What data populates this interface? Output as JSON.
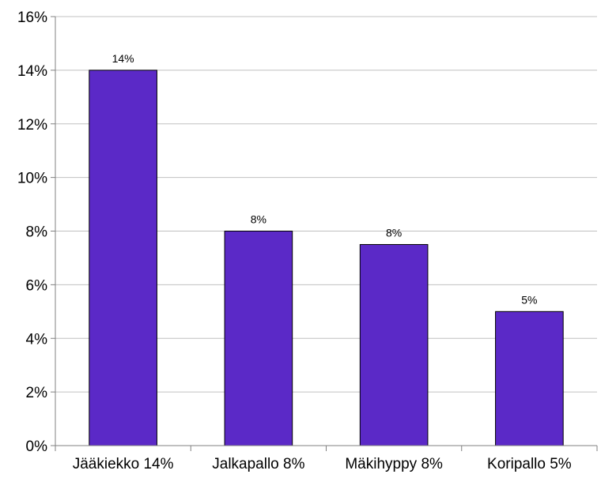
{
  "chart_data": {
    "type": "bar",
    "categories": [
      "Jääkiekko 14%",
      "Jalkapallo 8%",
      "Mäkihyppy 8%",
      "Koripallo 5%"
    ],
    "values": [
      14,
      8,
      7.5,
      5
    ],
    "data_labels": [
      "14%",
      "8%",
      "8%",
      "5%"
    ],
    "y_ticks": [
      "0%",
      "2%",
      "4%",
      "6%",
      "8%",
      "10%",
      "12%",
      "14%",
      "16%"
    ],
    "ylim": [
      0,
      16
    ],
    "grid": true,
    "legend": "none",
    "colors": {
      "bar": "#5B29C7",
      "bar_border": "#000000",
      "grid": "#C0C0C0",
      "axis": "#808080"
    }
  }
}
